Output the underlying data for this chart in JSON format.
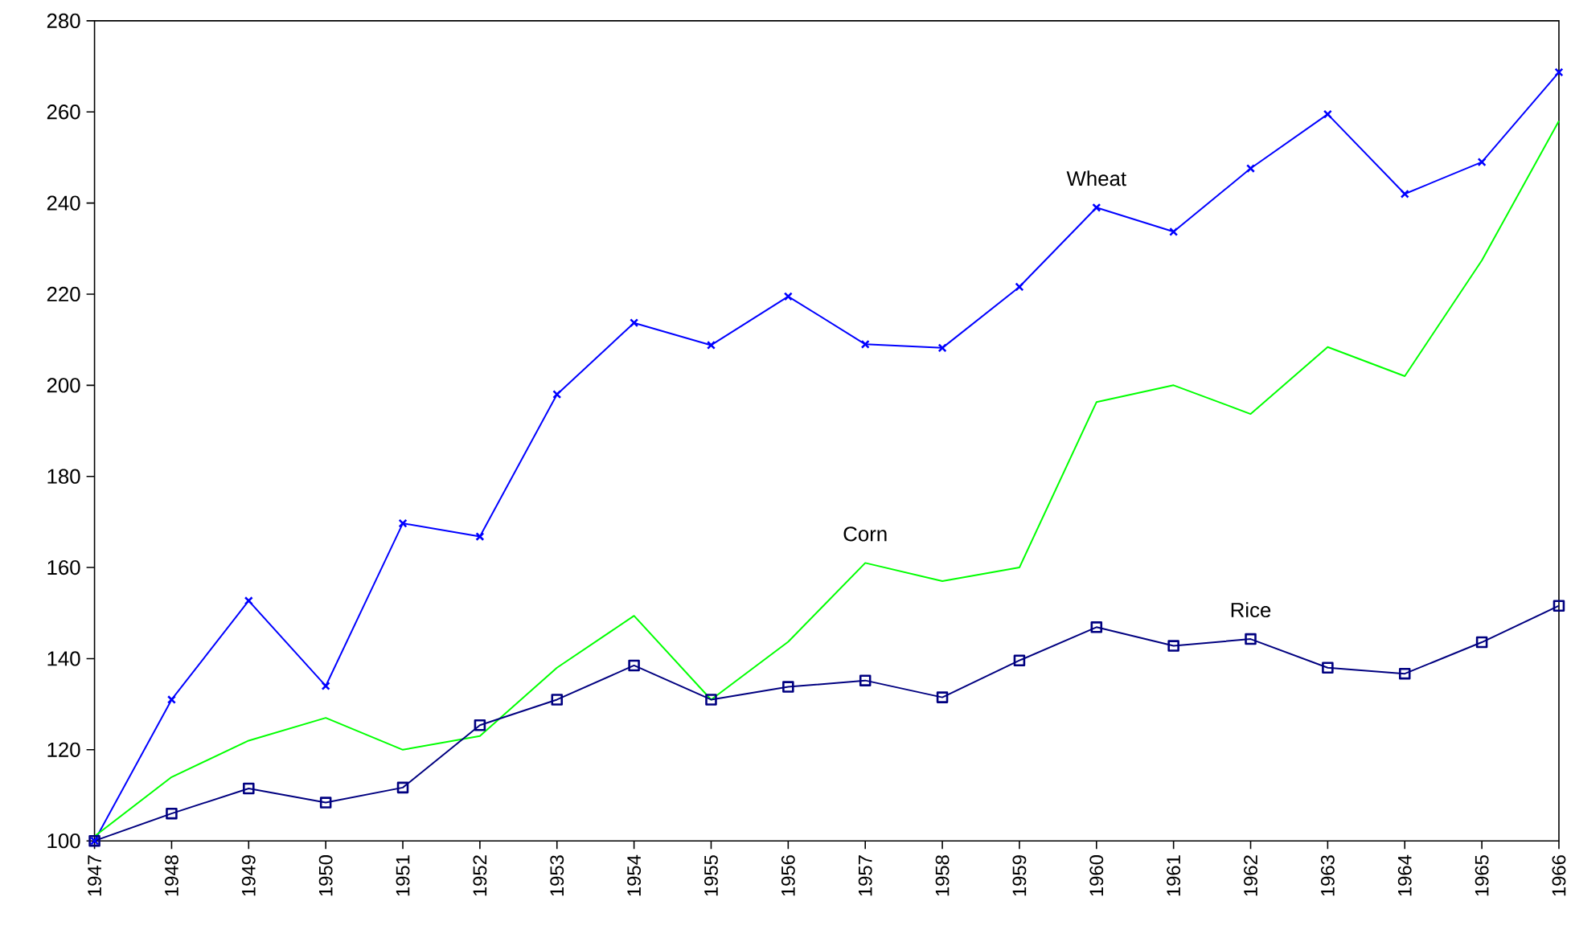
{
  "chart_data": {
    "type": "line",
    "categories": [
      "1947",
      "1948",
      "1949",
      "1950",
      "1951",
      "1952",
      "1953",
      "1954",
      "1955",
      "1956",
      "1957",
      "1958",
      "1959",
      "1960",
      "1961",
      "1962",
      "1963",
      "1964",
      "1965",
      "1966"
    ],
    "series": [
      {
        "color": "#0000ff",
        "marker": "cross",
        "values": [
          100,
          131,
          152.7,
          134,
          169.7,
          166.8,
          198,
          213.7,
          208.8,
          219.5,
          209,
          208.2,
          221.6,
          239,
          233.7,
          247.6,
          259.5,
          242,
          249,
          268.7
        ]
      },
      {
        "color": "#00ff00",
        "marker": "none",
        "values": [
          101,
          114,
          122,
          127,
          120,
          123,
          138,
          149.4,
          131,
          143.7,
          161,
          157,
          160,
          196.3,
          200,
          193.7,
          208.4,
          202,
          227.4,
          258
        ]
      },
      {
        "color": "#000080",
        "marker": "square",
        "values": [
          100,
          106,
          111.5,
          108.4,
          111.7,
          125.4,
          131,
          138.5,
          131,
          133.8,
          135.2,
          131.5,
          139.6,
          146.9,
          142.8,
          144.3,
          138,
          136.7,
          143.6,
          151.6
        ]
      }
    ],
    "ylim": [
      100,
      280
    ],
    "yticks": [
      100,
      120,
      140,
      160,
      180,
      200,
      220,
      240,
      260,
      280
    ],
    "grid": false,
    "annotations": [
      {
        "text": "Wheat",
        "x": "1960",
        "y": 239
      },
      {
        "text": "Corn",
        "x": "1957",
        "y": 161
      },
      {
        "text": "Rice",
        "x": "1962",
        "y": 144.3
      }
    ]
  }
}
